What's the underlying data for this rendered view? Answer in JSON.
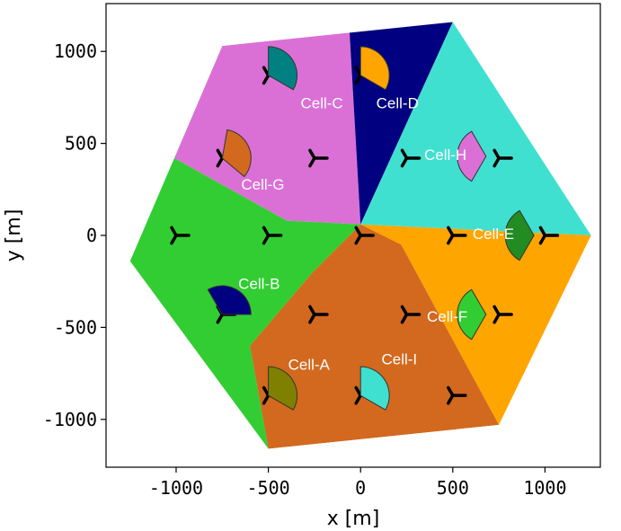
{
  "chart_data": {
    "type": "scatter",
    "xlabel": "x [m]",
    "ylabel": "y [m]",
    "xlim": [
      -1380,
      1300
    ],
    "ylim": [
      -1260,
      1260
    ],
    "xticks": [
      -1000,
      -500,
      0,
      500,
      1000
    ],
    "yticks": [
      1000,
      500,
      0,
      -500,
      -1000
    ],
    "xtick_labels": [
      "-1000",
      "-500",
      "0",
      "500",
      "1000"
    ],
    "ytick_labels": [
      "1000",
      "500",
      "0",
      "-500",
      "-1000"
    ],
    "grid": false,
    "hexagon": [
      [
        1250,
        0
      ],
      [
        500,
        1160
      ],
      [
        -750,
        1030
      ],
      [
        -1250,
        -140
      ],
      [
        -500,
        -1160
      ],
      [
        750,
        -1030
      ]
    ],
    "regions": [
      {
        "color": "#da70d6",
        "polygon": [
          [
            0,
            60
          ],
          [
            -60,
            1110
          ],
          [
            -750,
            1030
          ],
          [
            -1010,
            420
          ],
          [
            -400,
            80
          ]
        ]
      },
      {
        "color": "#000080",
        "polygon": [
          [
            0,
            60
          ],
          [
            500,
            1160
          ],
          [
            -60,
            1110
          ]
        ]
      },
      {
        "color": "#40e0d0",
        "polygon": [
          [
            0,
            60
          ],
          [
            1250,
            0
          ],
          [
            500,
            1160
          ]
        ]
      },
      {
        "color": "#ffa500",
        "polygon": [
          [
            0,
            60
          ],
          [
            220,
            -50
          ],
          [
            750,
            -1030
          ],
          [
            1250,
            0
          ]
        ]
      },
      {
        "color": "#d2691e",
        "polygon": [
          [
            0,
            60
          ],
          [
            220,
            -50
          ],
          [
            750,
            -1030
          ],
          [
            -500,
            -1160
          ],
          [
            -600,
            -600
          ],
          [
            -260,
            -200
          ]
        ]
      },
      {
        "color": "#32cd32",
        "polygon": [
          [
            0,
            60
          ],
          [
            -400,
            80
          ],
          [
            -1010,
            420
          ],
          [
            -1250,
            -140
          ],
          [
            -500,
            -1160
          ],
          [
            -600,
            -600
          ],
          [
            -260,
            -200
          ]
        ]
      }
    ],
    "base_stations": [
      [
        -500,
        870
      ],
      [
        0,
        870
      ],
      [
        -750,
        420
      ],
      [
        -250,
        420
      ],
      [
        250,
        420
      ],
      [
        750,
        420
      ],
      [
        -1000,
        0
      ],
      [
        -500,
        0
      ],
      [
        0,
        0
      ],
      [
        500,
        0
      ],
      [
        1000,
        0
      ],
      [
        -750,
        -430
      ],
      [
        -250,
        -430
      ],
      [
        250,
        -430
      ],
      [
        750,
        -430
      ],
      [
        -500,
        -870
      ],
      [
        0,
        -870
      ],
      [
        500,
        -870
      ]
    ],
    "cells": [
      {
        "name": "Cell-C",
        "x": -500,
        "y": 870,
        "azimuth": 30,
        "color": "#008080",
        "label_x": -210,
        "label_y": 690
      },
      {
        "name": "Cell-D",
        "x": 0,
        "y": 870,
        "azimuth": 30,
        "color": "#ffa500",
        "label_x": 200,
        "label_y": 690
      },
      {
        "name": "Cell-H",
        "x": 680,
        "y": 430,
        "azimuth": 180,
        "color": "#da70d6",
        "label_x": 460,
        "label_y": 410
      },
      {
        "name": "Cell-G",
        "x": -750,
        "y": 420,
        "azimuth": 20,
        "color": "#d2691e",
        "label_x": -530,
        "label_y": 250
      },
      {
        "name": "Cell-E",
        "x": 940,
        "y": 0,
        "azimuth": 180,
        "color": "#228b22",
        "label_x": 720,
        "label_y": -20
      },
      {
        "name": "Cell-B",
        "x": -750,
        "y": -430,
        "azimuth": 60,
        "color": "#000080",
        "label_x": -550,
        "label_y": -290
      },
      {
        "name": "Cell-F",
        "x": 680,
        "y": -430,
        "azimuth": 180,
        "color": "#32cd32",
        "label_x": 470,
        "label_y": -470
      },
      {
        "name": "Cell-A",
        "x": -500,
        "y": -870,
        "azimuth": 30,
        "color": "#808000",
        "label_x": -280,
        "label_y": -730
      },
      {
        "name": "Cell-I",
        "x": 0,
        "y": -870,
        "azimuth": 30,
        "color": "#40e0d0",
        "label_x": 210,
        "label_y": -700
      }
    ]
  }
}
